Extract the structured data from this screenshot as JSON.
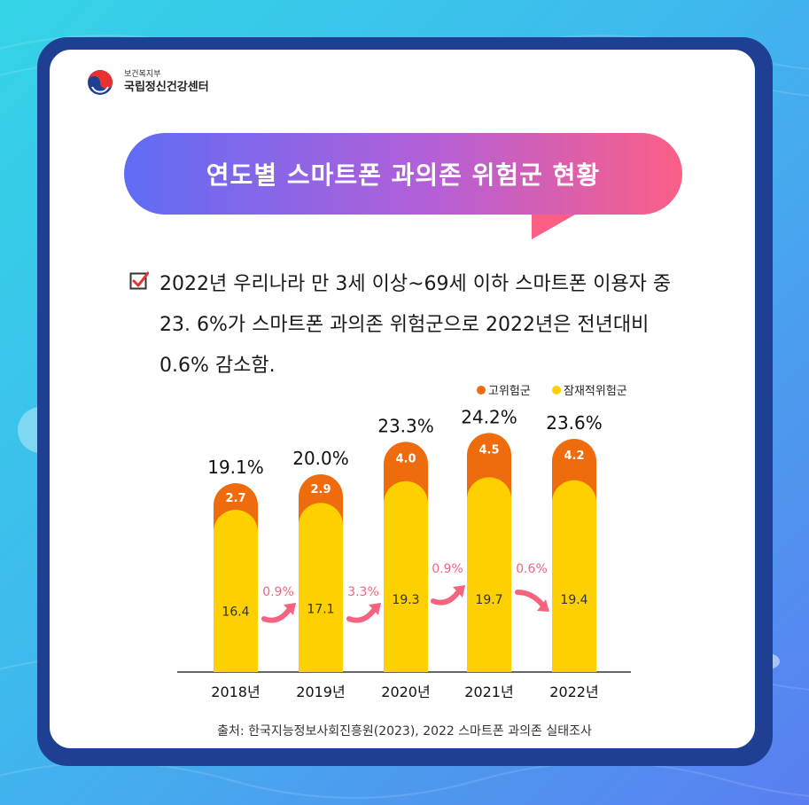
{
  "header": {
    "ministry": "보건복지부",
    "center": "국립정신건강센터"
  },
  "title": "연도별 스마트폰 과의존 위험군 현황",
  "summary": "2022년 우리나라 만 3세 이상~69세 이하 스마트폰 이용자 중\n23. 6%가 스마트폰 과의존 위험군으로 2022년은 전년대비\n0.6% 감소함.",
  "colors": {
    "high_risk": "#ef6c0e",
    "potential_risk": "#ffd000",
    "change_arrow": "#f4647f",
    "frame": "#1f3f92"
  },
  "chart_data": {
    "type": "bar",
    "stacked": true,
    "categories": [
      "2018년",
      "2019년",
      "2020년",
      "2021년",
      "2022년"
    ],
    "series": [
      {
        "name": "잠재적위험군",
        "values": [
          16.4,
          17.1,
          19.3,
          19.7,
          19.4
        ],
        "labels": [
          "16.4",
          "17.1",
          "19.3",
          "19.7",
          "19.4"
        ]
      },
      {
        "name": "고위험군",
        "values": [
          2.7,
          2.9,
          4.0,
          4.5,
          4.2
        ],
        "labels": [
          "2.7",
          "2.9",
          "4.0",
          "4.5",
          "4.2"
        ]
      }
    ],
    "totals": [
      "19.1%",
      "20.0%",
      "23.3%",
      "24.2%",
      "23.6%"
    ],
    "changes": [
      {
        "label": "0.9%",
        "direction": "up"
      },
      {
        "label": "3.3%",
        "direction": "up"
      },
      {
        "label": "0.9%",
        "direction": "up"
      },
      {
        "label": "0.6%",
        "direction": "down"
      }
    ],
    "legend": [
      "고위험군",
      "잠재적위험군"
    ],
    "legend_position": "top-right",
    "grid": false
  },
  "source": "출처: 한국지능정보사회진흥원(2023), 2022 스마트폰 과의존 실태조사"
}
